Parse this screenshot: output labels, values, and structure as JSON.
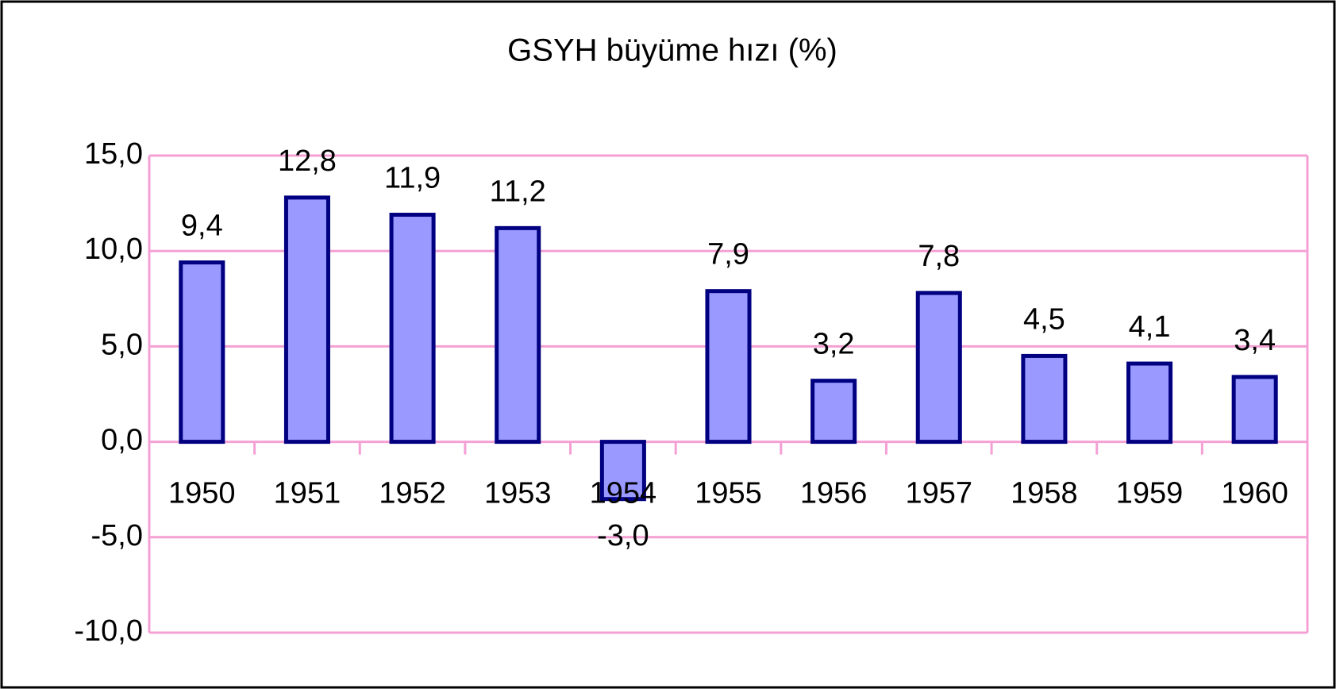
{
  "chart_data": {
    "type": "bar",
    "title": "GSYH büyüme hızı (%)",
    "categories": [
      "1950",
      "1951",
      "1952",
      "1953",
      "1954",
      "1955",
      "1956",
      "1957",
      "1958",
      "1959",
      "1960"
    ],
    "values": [
      9.4,
      12.8,
      11.9,
      11.2,
      -3.0,
      7.9,
      3.2,
      7.8,
      4.5,
      4.1,
      3.4
    ],
    "value_labels": [
      "9,4",
      "12,8",
      "11,9",
      "11,2",
      "-3,0",
      "7,9",
      "3,2",
      "7,8",
      "4,5",
      "4,1",
      "3,4"
    ],
    "color": "#9999ff",
    "edge_color": "#000080",
    "ylim": [
      -10,
      15
    ],
    "yticks": [
      {
        "value": -10,
        "label": "-10,0"
      },
      {
        "value": -5,
        "label": "-5,0"
      },
      {
        "value": 0,
        "label": "0,0"
      },
      {
        "value": 5,
        "label": "5,0"
      },
      {
        "value": 10,
        "label": "10,0"
      },
      {
        "value": 15,
        "label": "15,0"
      }
    ],
    "grid": true,
    "grid_color": "#f4a0d4"
  }
}
